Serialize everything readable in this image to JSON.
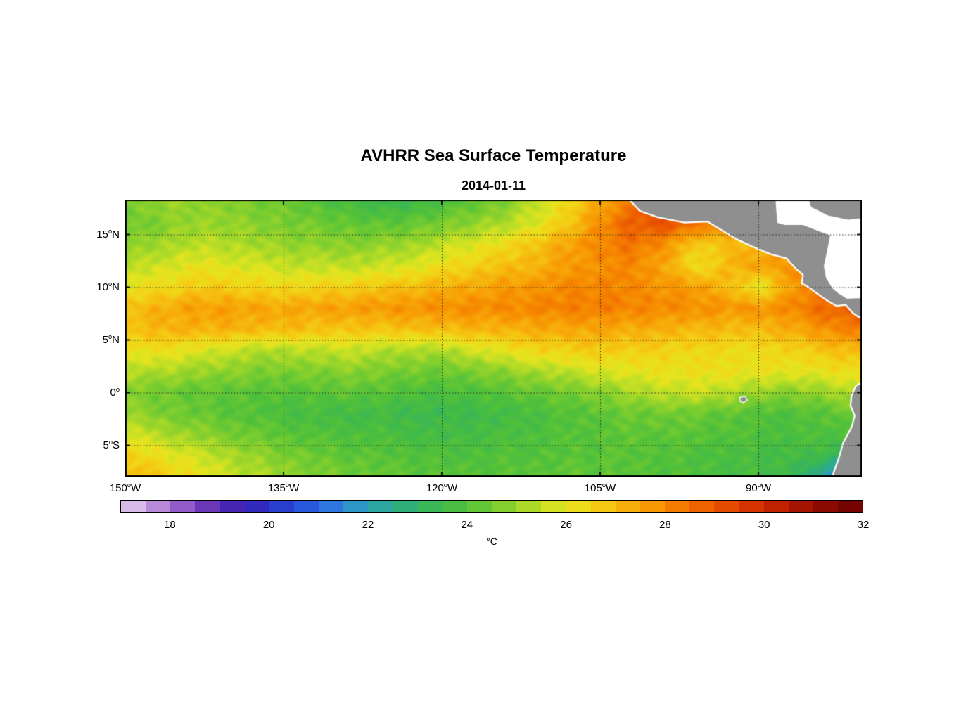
{
  "figure": {
    "title": "AVHRR Sea Surface Temperature",
    "subtitle": "2014-01-11",
    "unit_label": "°C"
  },
  "chart_data": {
    "type": "heatmap",
    "title": "AVHRR Sea Surface Temperature",
    "subtitle": "2014-01-11",
    "unit": "°C",
    "lon_range": [
      -150,
      -80.2
    ],
    "lat_range": [
      -7.97,
      18.3
    ],
    "x_ticks": [
      {
        "lon": -150,
        "num": "150",
        "deg": "o",
        "hem": "W"
      },
      {
        "lon": -135,
        "num": "135",
        "deg": "o",
        "hem": "W"
      },
      {
        "lon": -120,
        "num": "120",
        "deg": "o",
        "hem": "W"
      },
      {
        "lon": -105,
        "num": "105",
        "deg": "o",
        "hem": "W"
      },
      {
        "lon": -90,
        "num": "90",
        "deg": "o",
        "hem": "W"
      }
    ],
    "y_ticks": [
      {
        "lat": 15,
        "num": "15",
        "deg": "o",
        "hem": "N"
      },
      {
        "lat": 10,
        "num": "10",
        "deg": "o",
        "hem": "N"
      },
      {
        "lat": 5,
        "num": "5",
        "deg": "o",
        "hem": "N"
      },
      {
        "lat": 0,
        "num": "0",
        "deg": "o",
        "hem": ""
      },
      {
        "lat": -5,
        "num": "5",
        "deg": "o",
        "hem": "S"
      }
    ],
    "gridlines": {
      "lons": [
        -135,
        -120,
        -105,
        -90
      ],
      "lats": [
        15,
        10,
        5,
        0,
        -5
      ]
    },
    "grid": {
      "lons": [
        -150,
        -147,
        -144,
        -141,
        -138,
        -135,
        -132,
        -129,
        -126,
        -123,
        -120,
        -117,
        -114,
        -111,
        -108,
        -105,
        -102,
        -99,
        -96,
        -93,
        -90,
        -87,
        -84,
        -81
      ],
      "lats": [
        18,
        16,
        14,
        12,
        10,
        8,
        6,
        4,
        2,
        0,
        -2,
        -4,
        -6,
        -8
      ],
      "sst_c": [
        [
          24.6,
          24.9,
          25.0,
          24.8,
          24.6,
          24.4,
          24.1,
          23.7,
          23.5,
          23.4,
          23.9,
          24.2,
          24.7,
          25.5,
          26.4,
          27.4,
          28.4,
          28.8,
          28.5,
          28.0,
          27.6,
          27.4,
          27.2,
          27.0
        ],
        [
          24.4,
          24.7,
          25.0,
          25.0,
          24.8,
          24.6,
          24.5,
          24.3,
          24.2,
          24.3,
          24.6,
          24.9,
          25.3,
          25.9,
          26.8,
          27.9,
          28.9,
          29.1,
          28.5,
          28.1,
          27.8,
          27.5,
          27.3,
          27.1
        ],
        [
          24.8,
          25.1,
          25.4,
          25.4,
          25.2,
          25.0,
          24.9,
          24.8,
          24.9,
          25.1,
          25.5,
          25.9,
          26.3,
          26.9,
          27.5,
          28.1,
          28.4,
          27.9,
          26.6,
          26.9,
          27.2,
          27.6,
          27.5,
          27.4
        ],
        [
          25.3,
          25.7,
          26.0,
          26.0,
          25.8,
          25.6,
          25.5,
          25.5,
          25.6,
          25.9,
          26.2,
          26.6,
          26.9,
          27.2,
          27.6,
          27.9,
          28.0,
          27.5,
          26.2,
          27.0,
          27.5,
          27.8,
          27.9,
          27.8
        ],
        [
          26.0,
          26.3,
          26.6,
          26.7,
          26.5,
          26.4,
          26.5,
          26.6,
          26.8,
          27.0,
          27.2,
          27.4,
          27.6,
          27.8,
          28.0,
          28.1,
          28.0,
          27.8,
          27.6,
          27.1,
          25.9,
          27.6,
          28.2,
          28.4
        ],
        [
          26.9,
          27.2,
          27.5,
          27.6,
          27.5,
          27.4,
          27.5,
          27.6,
          27.7,
          27.8,
          27.9,
          28.0,
          28.0,
          28.1,
          28.2,
          28.2,
          28.1,
          28.0,
          27.9,
          27.8,
          27.8,
          28.0,
          28.6,
          28.9
        ],
        [
          26.9,
          27.1,
          27.2,
          27.2,
          27.1,
          27.0,
          26.9,
          26.8,
          26.8,
          26.9,
          27.0,
          27.1,
          27.2,
          27.3,
          27.4,
          27.4,
          27.3,
          27.2,
          27.1,
          27.0,
          27.0,
          27.3,
          27.8,
          28.2
        ],
        [
          26.2,
          26.2,
          26.0,
          25.7,
          25.4,
          25.3,
          25.5,
          25.6,
          25.4,
          25.2,
          25.3,
          25.7,
          26.1,
          26.4,
          26.6,
          26.7,
          26.6,
          26.5,
          26.4,
          26.3,
          26.3,
          26.5,
          26.8,
          27.0
        ],
        [
          25.4,
          25.3,
          25.1,
          24.9,
          24.7,
          24.6,
          24.7,
          24.8,
          24.7,
          24.5,
          24.4,
          24.6,
          24.9,
          25.2,
          25.5,
          25.8,
          26.0,
          26.1,
          26.2,
          26.2,
          26.1,
          26.0,
          26.1,
          26.3
        ],
        [
          24.7,
          24.5,
          24.3,
          24.2,
          24.1,
          24.0,
          24.1,
          24.2,
          24.1,
          23.9,
          23.8,
          23.9,
          24.1,
          24.3,
          24.5,
          24.8,
          25.2,
          25.5,
          25.6,
          25.4,
          25.0,
          24.8,
          25.0,
          25.4
        ],
        [
          25.0,
          24.7,
          24.4,
          24.2,
          24.0,
          23.8,
          23.7,
          23.6,
          23.6,
          23.5,
          23.4,
          23.5,
          23.6,
          23.8,
          24.0,
          24.2,
          24.4,
          24.5,
          24.4,
          24.2,
          24.0,
          23.9,
          24.1,
          24.4
        ],
        [
          25.8,
          25.4,
          25.0,
          24.7,
          24.4,
          24.2,
          24.0,
          23.9,
          23.8,
          23.7,
          23.6,
          23.7,
          23.8,
          23.9,
          24.0,
          24.1,
          24.2,
          24.2,
          24.1,
          24.0,
          23.9,
          23.8,
          23.9,
          24.0
        ],
        [
          26.6,
          26.2,
          25.8,
          25.4,
          25.0,
          24.7,
          24.4,
          24.2,
          24.1,
          24.0,
          23.9,
          23.9,
          24.0,
          24.0,
          24.1,
          24.1,
          24.1,
          24.0,
          23.9,
          23.8,
          23.7,
          23.6,
          23.5,
          23.0
        ],
        [
          27.2,
          26.8,
          26.3,
          25.8,
          25.4,
          25.0,
          24.7,
          24.5,
          24.3,
          24.2,
          24.1,
          24.1,
          24.1,
          24.2,
          24.2,
          24.2,
          24.1,
          24.0,
          23.9,
          23.8,
          23.7,
          23.5,
          22.0,
          20.3
        ]
      ]
    },
    "colormap_stops": [
      [
        17.0,
        "#e6d5f0"
      ],
      [
        17.5,
        "#c9a3e0"
      ],
      [
        18.0,
        "#a76fd1"
      ],
      [
        18.5,
        "#7e46c0"
      ],
      [
        19.0,
        "#5527b0"
      ],
      [
        19.5,
        "#3b21b4"
      ],
      [
        20.0,
        "#2b2fc4"
      ],
      [
        20.5,
        "#264bd8"
      ],
      [
        21.0,
        "#2a66e2"
      ],
      [
        21.5,
        "#2f86d8"
      ],
      [
        22.0,
        "#2da3b5"
      ],
      [
        22.5,
        "#2bab8a"
      ],
      [
        23.0,
        "#33b364"
      ],
      [
        23.5,
        "#41ba4a"
      ],
      [
        24.0,
        "#52c13a"
      ],
      [
        24.5,
        "#72cb31"
      ],
      [
        25.0,
        "#97d42b"
      ],
      [
        25.5,
        "#c0df25"
      ],
      [
        26.0,
        "#e6e41f"
      ],
      [
        26.5,
        "#f2d417"
      ],
      [
        27.0,
        "#f6bc0f"
      ],
      [
        27.5,
        "#f7a307"
      ],
      [
        28.0,
        "#f68a00"
      ],
      [
        28.5,
        "#f17000"
      ],
      [
        29.0,
        "#ea5600"
      ],
      [
        29.5,
        "#dd3d00"
      ],
      [
        30.0,
        "#cc2800"
      ],
      [
        30.5,
        "#b31a00"
      ],
      [
        31.0,
        "#970e00"
      ],
      [
        31.5,
        "#7e0600"
      ],
      [
        32.0,
        "#6b0000"
      ]
    ],
    "colorbar": {
      "min": 17,
      "max": 32,
      "step": 0.5,
      "ticks": [
        18,
        20,
        22,
        24,
        26,
        28,
        30,
        32
      ],
      "unit": "°C"
    },
    "land_color": "#8f8f8f",
    "nodata_color": "#ffffff",
    "geography": {
      "nodata_region": [
        [
          -102.4,
          18.6
        ],
        [
          -101.2,
          17.3
        ],
        [
          -99.5,
          16.7
        ],
        [
          -97.0,
          16.2
        ],
        [
          -94.8,
          16.3
        ],
        [
          -93.5,
          15.5
        ],
        [
          -92.0,
          14.6
        ],
        [
          -90.5,
          13.9
        ],
        [
          -88.8,
          13.2
        ],
        [
          -87.3,
          12.8
        ],
        [
          -86.4,
          11.8
        ],
        [
          -85.7,
          11.2
        ],
        [
          -85.8,
          10.4
        ],
        [
          -85.1,
          10.0
        ],
        [
          -84.6,
          9.6
        ],
        [
          -83.6,
          8.9
        ],
        [
          -82.6,
          8.3
        ],
        [
          -81.7,
          8.4
        ],
        [
          -81.0,
          7.6
        ],
        [
          -80.4,
          7.2
        ],
        [
          -79.5,
          7.4
        ],
        [
          -79.5,
          18.6
        ]
      ],
      "land": [
        [
          [
            -102.4,
            18.6
          ],
          [
            -101.2,
            17.3
          ],
          [
            -99.5,
            16.7
          ],
          [
            -97.0,
            16.2
          ],
          [
            -94.8,
            16.3
          ],
          [
            -93.5,
            15.5
          ],
          [
            -92.0,
            14.6
          ],
          [
            -90.5,
            13.9
          ],
          [
            -88.8,
            13.2
          ],
          [
            -87.3,
            12.8
          ],
          [
            -86.4,
            11.8
          ],
          [
            -85.7,
            11.2
          ],
          [
            -85.8,
            10.4
          ],
          [
            -85.1,
            10.0
          ],
          [
            -84.6,
            9.6
          ],
          [
            -83.6,
            8.9
          ],
          [
            -82.6,
            8.3
          ],
          [
            -81.7,
            8.4
          ],
          [
            -81.0,
            7.6
          ],
          [
            -80.4,
            7.2
          ],
          [
            -79.5,
            7.4
          ],
          [
            -79.5,
            9.0
          ],
          [
            -81.6,
            8.9
          ],
          [
            -82.4,
            9.4
          ],
          [
            -83.0,
            9.9
          ],
          [
            -83.6,
            10.9
          ],
          [
            -83.8,
            12.0
          ],
          [
            -83.5,
            13.4
          ],
          [
            -83.2,
            14.9
          ],
          [
            -84.5,
            15.4
          ],
          [
            -85.8,
            15.9
          ],
          [
            -87.5,
            15.9
          ],
          [
            -88.2,
            16.1
          ],
          [
            -88.3,
            17.2
          ],
          [
            -88.4,
            18.6
          ]
        ],
        [
          [
            -85.3,
            18.6
          ],
          [
            -79.5,
            18.6
          ],
          [
            -79.5,
            16.6
          ],
          [
            -81.5,
            16.4
          ],
          [
            -83.4,
            16.8
          ],
          [
            -85.0,
            17.6
          ]
        ],
        [
          [
            -79.5,
            1.3
          ],
          [
            -80.7,
            0.6
          ],
          [
            -81.1,
            -0.3
          ],
          [
            -81.2,
            -1.2
          ],
          [
            -80.8,
            -2.2
          ],
          [
            -81.1,
            -3.3
          ],
          [
            -81.9,
            -4.8
          ],
          [
            -82.3,
            -6.2
          ],
          [
            -82.8,
            -7.6
          ],
          [
            -83.0,
            -8.4
          ],
          [
            -79.5,
            -8.4
          ]
        ]
      ],
      "islands": [
        [
          [
            -91.7,
            -0.5
          ],
          [
            -91.3,
            -0.4
          ],
          [
            -91.1,
            -0.7
          ],
          [
            -91.4,
            -0.9
          ],
          [
            -91.7,
            -0.8
          ]
        ]
      ]
    }
  }
}
